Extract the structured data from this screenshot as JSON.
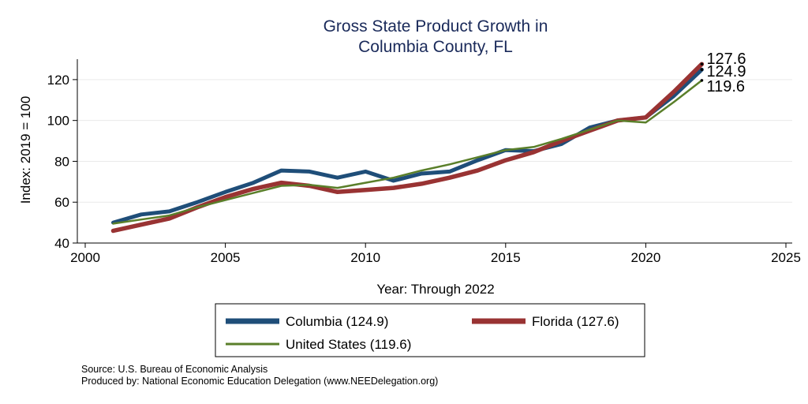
{
  "chart_data": {
    "type": "line",
    "title": [
      "Gross State Product Growth in",
      "Columbia County, FL"
    ],
    "xlabel": "Year: Through 2022",
    "ylabel": "Index: 2019 = 100",
    "xlim": [
      2000,
      2025
    ],
    "ylim": [
      40,
      130
    ],
    "xticks": [
      2000,
      2005,
      2010,
      2015,
      2020,
      2025
    ],
    "yticks": [
      40,
      60,
      80,
      100,
      120
    ],
    "grid": true,
    "legend_position": "bottom",
    "x": [
      2001,
      2002,
      2003,
      2004,
      2005,
      2006,
      2007,
      2008,
      2009,
      2010,
      2011,
      2012,
      2013,
      2014,
      2015,
      2016,
      2017,
      2018,
      2019,
      2020,
      2021,
      2022
    ],
    "series": [
      {
        "name": "Columbia",
        "legend_label": "Columbia  (124.9)",
        "color": "#1f4e79",
        "end_label": "124.9",
        "values": [
          50,
          54,
          55.5,
          60,
          65,
          69.5,
          75.5,
          75,
          72,
          75,
          70.5,
          74,
          75,
          80.5,
          85.5,
          85,
          88.5,
          96.5,
          100,
          101.5,
          112,
          124.9
        ]
      },
      {
        "name": "Florida",
        "legend_label": "Florida (127.6)",
        "color": "#993333",
        "end_label": "127.6",
        "values": [
          46,
          49,
          52,
          57.5,
          62.5,
          66.5,
          69.5,
          68,
          65,
          66,
          67,
          69,
          72,
          75.5,
          80.5,
          84.5,
          90,
          95,
          100,
          101.5,
          114,
          127.6
        ]
      },
      {
        "name": "United States",
        "legend_label": "United States (119.6)",
        "color": "#5a7f2a",
        "end_label": "119.6",
        "values": [
          49.5,
          51.5,
          53.5,
          57.5,
          61,
          64.5,
          68,
          68.5,
          67,
          69.5,
          72,
          75.5,
          78.5,
          82,
          85.5,
          87,
          91,
          95.5,
          100,
          99,
          109,
          119.6
        ]
      }
    ]
  },
  "footer": {
    "source": "Source: U.S. Bureau of Economic Analysis",
    "produced_by": "Produced by: National Economic Education Delegation (www.NEEDelegation.org)"
  }
}
